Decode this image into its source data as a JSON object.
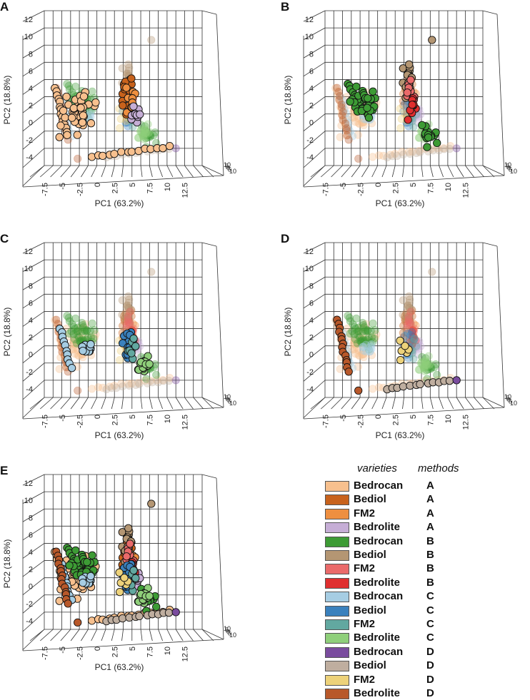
{
  "chart_data": [
    {
      "type": "scatter",
      "panel": "A",
      "xlabel": "PC1 (63.2%)",
      "ylabel": "PC2 (18.8%)",
      "x_ticks": [
        "-7.5",
        "-5",
        "-2.5",
        "0",
        "2.5",
        "5",
        "7.5",
        "10",
        "12.5"
      ],
      "y_ticks": [
        "-4",
        "-2",
        "0",
        "2",
        "4",
        "6",
        "8",
        "10",
        "12"
      ],
      "z_ticks": [
        "10",
        "5",
        "0",
        "5",
        "10"
      ],
      "xlim": [
        -8.75,
        13.75
      ],
      "ylim": [
        -5,
        13
      ],
      "grid": true,
      "highlighted_method": "A"
    },
    {
      "type": "scatter",
      "panel": "B",
      "xlabel": "PC1 (63.2%)",
      "ylabel": "PC2 (18.8%)",
      "x_ticks": [
        "-7.5",
        "-5",
        "-2.5",
        "0",
        "2.5",
        "5",
        "7.5",
        "10",
        "12.5"
      ],
      "y_ticks": [
        "-4",
        "-2",
        "0",
        "2",
        "4",
        "6",
        "8",
        "10",
        "12"
      ],
      "z_ticks": [
        "10",
        "5",
        "0",
        "5",
        "10"
      ],
      "xlim": [
        -8.75,
        13.75
      ],
      "ylim": [
        -5,
        13
      ],
      "grid": true,
      "highlighted_method": "B"
    },
    {
      "type": "scatter",
      "panel": "C",
      "xlabel": "PC1 (63.2%)",
      "ylabel": "PC2 (18.8%)",
      "x_ticks": [
        "-7.5",
        "-5",
        "-2.5",
        "0",
        "2.5",
        "5",
        "7.5",
        "10",
        "12.5"
      ],
      "y_ticks": [
        "-4",
        "-2",
        "0",
        "2",
        "4",
        "6",
        "8",
        "10",
        "12"
      ],
      "z_ticks": [
        "10",
        "5",
        "0",
        "5",
        "10"
      ],
      "xlim": [
        -8.75,
        13.75
      ],
      "ylim": [
        -5,
        13
      ],
      "grid": true,
      "highlighted_method": "C"
    },
    {
      "type": "scatter",
      "panel": "D",
      "xlabel": "PC1 (63.2%)",
      "ylabel": "PC2 (18.8%)",
      "x_ticks": [
        "-7.5",
        "-5",
        "-2.5",
        "0",
        "2.5",
        "5",
        "7.5",
        "10",
        "12.5"
      ],
      "y_ticks": [
        "-4",
        "-2",
        "0",
        "2",
        "4",
        "6",
        "8",
        "10",
        "12"
      ],
      "z_ticks": [
        "10",
        "5",
        "0",
        "5",
        "10"
      ],
      "xlim": [
        -8.75,
        13.75
      ],
      "ylim": [
        -5,
        13
      ],
      "grid": true,
      "highlighted_method": "D"
    },
    {
      "type": "scatter",
      "panel": "E",
      "xlabel": "PC1 (63.2%)",
      "ylabel": "PC2 (18.8%)",
      "x_ticks": [
        "-7.5",
        "-5",
        "-2.5",
        "0",
        "2.5",
        "5",
        "7.5",
        "10",
        "12.5"
      ],
      "y_ticks": [
        "-4",
        "-2",
        "0",
        "2",
        "4",
        "6",
        "8",
        "10",
        "12"
      ],
      "z_ticks": [
        "10",
        "5",
        "0",
        "5",
        "10"
      ],
      "xlim": [
        -8.75,
        13.75
      ],
      "ylim": [
        -5,
        13
      ],
      "grid": true,
      "highlighted_method": "all"
    }
  ],
  "legend": {
    "varieties_header": "varieties",
    "methods_header": "methods",
    "items": [
      {
        "variety": "Bedrocan",
        "method": "A",
        "color": "#f7c08e"
      },
      {
        "variety": "Bediol",
        "method": "A",
        "color": "#c8621c"
      },
      {
        "variety": "FM2",
        "method": "A",
        "color": "#ee8f40"
      },
      {
        "variety": "Bedrolite",
        "method": "A",
        "color": "#c6aed6"
      },
      {
        "variety": "Bedrocan",
        "method": "B",
        "color": "#3d9b35"
      },
      {
        "variety": "Bediol",
        "method": "B",
        "color": "#b49673"
      },
      {
        "variety": "FM2",
        "method": "B",
        "color": "#ea6a6a"
      },
      {
        "variety": "Bedrolite",
        "method": "B",
        "color": "#e02f2f"
      },
      {
        "variety": "Bedrocan",
        "method": "C",
        "color": "#a6cde3"
      },
      {
        "variety": "Bediol",
        "method": "C",
        "color": "#3a81bd"
      },
      {
        "variety": "FM2",
        "method": "C",
        "color": "#62a8a0"
      },
      {
        "variety": "Bedrolite",
        "method": "C",
        "color": "#8fcf7a"
      },
      {
        "variety": "Bedrocan",
        "method": "D",
        "color": "#7a4c9e"
      },
      {
        "variety": "Bediol",
        "method": "D",
        "color": "#bfae9f"
      },
      {
        "variety": "FM2",
        "method": "D",
        "color": "#edd27a"
      },
      {
        "variety": "Bedrolite",
        "method": "D",
        "color": "#b8582a"
      }
    ]
  }
}
